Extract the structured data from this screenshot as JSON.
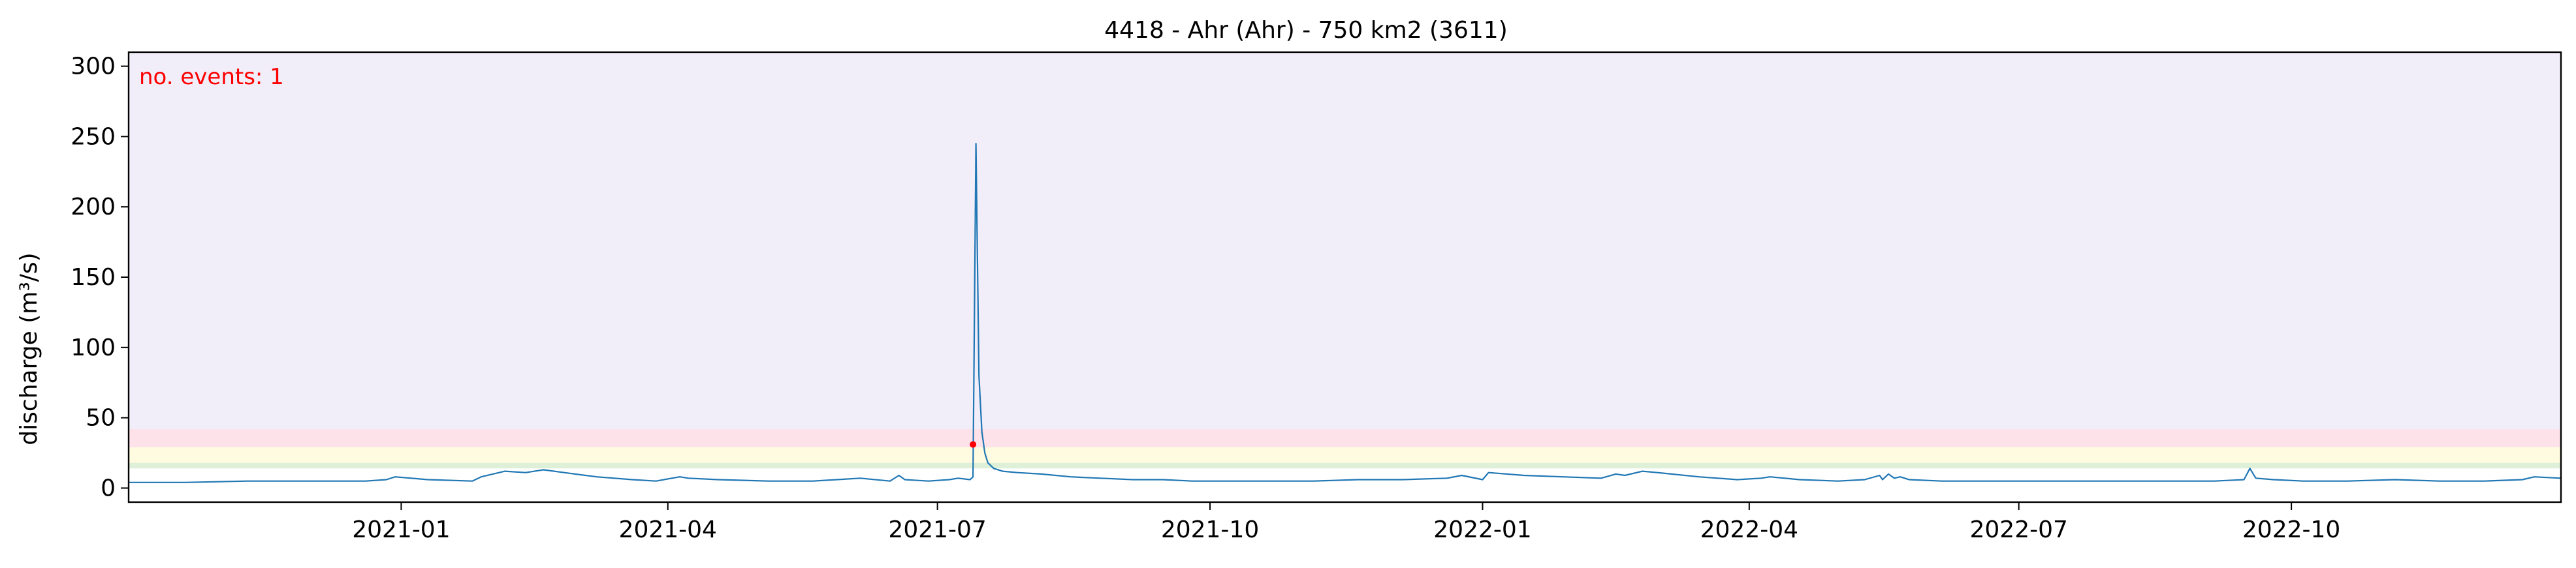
{
  "chart_data": {
    "type": "line",
    "title": "4418 - Ahr (Ahr) - 750 km2 (3611)",
    "ylabel": "discharge (m³/s)",
    "xlabel": "",
    "annotation": "no. events: 1",
    "xlim": [
      "2020-10-01",
      "2022-12-31"
    ],
    "ylim": [
      -10,
      310
    ],
    "yticks": [
      0,
      50,
      100,
      150,
      200,
      250,
      300
    ],
    "xticks": [
      "2021-01",
      "2021-04",
      "2021-07",
      "2021-10",
      "2022-01",
      "2022-04",
      "2022-07",
      "2022-10"
    ],
    "grid": false,
    "colors": {
      "line": "#1f77b4",
      "event": "#ff0000",
      "annotation": "#ff0000",
      "band_low": "#dff0d8",
      "band_mid": "#fffbe0",
      "band_high": "#fde2ea",
      "band_top": "#f1edf9"
    },
    "bands": [
      {
        "from": 14,
        "to": 18,
        "color": "#dff0d8"
      },
      {
        "from": 18,
        "to": 29,
        "color": "#fffbe0"
      },
      {
        "from": 29,
        "to": 42,
        "color": "#fde2ea"
      },
      {
        "from": 42,
        "to": 310,
        "color": "#f1edf9"
      }
    ],
    "series": [
      {
        "x": [
          "2020-10-01",
          "2020-10-20",
          "2020-11-10",
          "2020-12-01",
          "2020-12-20",
          "2020-12-27",
          "2020-12-30",
          "2021-01-10",
          "2021-01-25",
          "2021-01-28",
          "2021-02-05",
          "2021-02-12",
          "2021-02-18",
          "2021-02-25",
          "2021-03-08",
          "2021-03-20",
          "2021-03-28",
          "2021-04-05",
          "2021-04-08",
          "2021-04-18",
          "2021-05-05",
          "2021-05-20",
          "2021-05-28",
          "2021-06-05",
          "2021-06-15",
          "2021-06-18",
          "2021-06-20",
          "2021-06-28",
          "2021-07-05",
          "2021-07-08",
          "2021-07-12",
          "2021-07-13",
          "2021-07-14",
          "2021-07-15",
          "2021-07-16",
          "2021-07-17",
          "2021-07-18",
          "2021-07-20",
          "2021-07-23",
          "2021-07-28",
          "2021-08-05",
          "2021-08-15",
          "2021-08-25",
          "2021-09-05",
          "2021-09-15",
          "2021-09-25",
          "2021-10-05",
          "2021-10-20",
          "2021-11-05",
          "2021-11-20",
          "2021-12-05",
          "2021-12-20",
          "2021-12-25",
          "2022-01-01",
          "2022-01-03",
          "2022-01-15",
          "2022-01-28",
          "2022-02-10",
          "2022-02-15",
          "2022-02-18",
          "2022-02-24",
          "2022-03-01",
          "2022-03-15",
          "2022-03-28",
          "2022-04-05",
          "2022-04-08",
          "2022-04-18",
          "2022-05-01",
          "2022-05-10",
          "2022-05-15",
          "2022-05-16",
          "2022-05-18",
          "2022-05-20",
          "2022-05-22",
          "2022-05-25",
          "2022-06-05",
          "2022-06-20",
          "2022-07-05",
          "2022-07-20",
          "2022-08-05",
          "2022-08-20",
          "2022-09-05",
          "2022-09-15",
          "2022-09-17",
          "2022-09-19",
          "2022-09-25",
          "2022-10-05",
          "2022-10-20",
          "2022-11-05",
          "2022-11-20",
          "2022-12-05",
          "2022-12-18",
          "2022-12-22",
          "2022-12-31"
        ],
        "y": [
          4,
          4,
          5,
          5,
          5,
          6,
          8,
          6,
          5,
          8,
          12,
          11,
          13,
          11,
          8,
          6,
          5,
          8,
          7,
          6,
          5,
          5,
          6,
          7,
          5,
          9,
          6,
          5,
          6,
          7,
          6,
          8,
          245,
          80,
          40,
          25,
          18,
          14,
          12,
          11,
          10,
          8,
          7,
          6,
          6,
          5,
          5,
          5,
          5,
          6,
          6,
          7,
          9,
          6,
          11,
          9,
          8,
          7,
          10,
          9,
          12,
          11,
          8,
          6,
          7,
          8,
          6,
          5,
          6,
          9,
          6,
          10,
          7,
          8,
          6,
          5,
          5,
          5,
          5,
          5,
          5,
          5,
          6,
          14,
          7,
          6,
          5,
          5,
          6,
          5,
          5,
          6,
          8,
          7
        ]
      }
    ],
    "events": [
      {
        "x": "2021-07-13",
        "y": 31
      }
    ]
  }
}
